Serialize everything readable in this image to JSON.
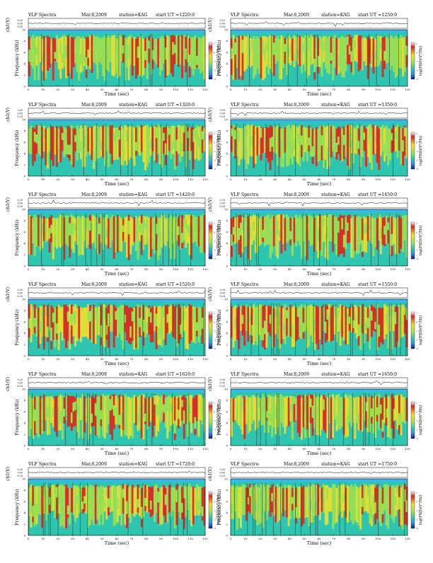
{
  "panel_defaults": {
    "header_left": "VLF Spectra",
    "date": "Mar.8,2009",
    "station": "station=KAG",
    "wave_label": "ch1(V)",
    "wave_ticks": [
      "0.20",
      "0.00",
      "-0.20"
    ],
    "freq_label": "Frequency (kHz)",
    "freq_ticks": [
      "10",
      "8",
      "6",
      "4",
      "2",
      "0"
    ],
    "time_label": "Time (sec)",
    "time_ticks": [
      "0",
      "10",
      "20",
      "30",
      "40",
      "50",
      "60",
      "70",
      "80",
      "90",
      "100",
      "110",
      "120"
    ],
    "colorbar_label": "log(PSD)(V²/Hz)",
    "colorbar_ticks": [
      "1",
      "0",
      "-1",
      "-2",
      "-3"
    ]
  },
  "colors": {
    "low": "#2f8fe0",
    "mid_low": "#2ec6b0",
    "mid": "#9fe050",
    "high": "#f0e02a",
    "peak": "#e2231a",
    "top_band": "#35b8ec",
    "sferic": "#3a3a3a"
  },
  "chart_data": [
    {
      "type": "heatmap",
      "start_label": "start  UT =1220:0",
      "density": 0.55,
      "seed": 3,
      "xlim": [
        0,
        120
      ],
      "ylim_khz": [
        0,
        10
      ]
    },
    {
      "type": "heatmap",
      "start_label": "start  UT =1250:0",
      "density": 0.5,
      "seed": 7,
      "xlim": [
        0,
        120
      ],
      "ylim_khz": [
        0,
        10
      ]
    },
    {
      "type": "heatmap",
      "start_label": "start  UT =1320:0",
      "density": 0.62,
      "seed": 11,
      "xlim": [
        0,
        120
      ],
      "ylim_khz": [
        0,
        10
      ]
    },
    {
      "type": "heatmap",
      "start_label": "start  UT =1350:0",
      "density": 0.6,
      "seed": 13,
      "xlim": [
        0,
        120
      ],
      "ylim_khz": [
        0,
        10
      ]
    },
    {
      "type": "heatmap",
      "start_label": "start  UT =1420:0",
      "density": 0.5,
      "seed": 17,
      "xlim": [
        0,
        120
      ],
      "ylim_khz": [
        0,
        10
      ]
    },
    {
      "type": "heatmap",
      "start_label": "start  UT =1450:0",
      "density": 0.52,
      "seed": 19,
      "xlim": [
        0,
        120
      ],
      "ylim_khz": [
        0,
        10
      ]
    },
    {
      "type": "heatmap",
      "start_label": "start  UT =1520:0",
      "density": 0.72,
      "seed": 23,
      "xlim": [
        0,
        120
      ],
      "ylim_khz": [
        0,
        10
      ]
    },
    {
      "type": "heatmap",
      "start_label": "start  UT =1550:0",
      "density": 0.66,
      "seed": 29,
      "xlim": [
        0,
        120
      ],
      "ylim_khz": [
        0,
        10
      ]
    },
    {
      "type": "heatmap",
      "start_label": "start  UT =1620:0",
      "density": 0.62,
      "seed": 31,
      "xlim": [
        0,
        120
      ],
      "ylim_khz": [
        0,
        10
      ]
    },
    {
      "type": "heatmap",
      "start_label": "start  UT =1650:0",
      "density": 0.64,
      "seed": 37,
      "xlim": [
        0,
        120
      ],
      "ylim_khz": [
        0,
        10
      ]
    },
    {
      "type": "heatmap",
      "start_label": "start  UT =1720:0",
      "density": 0.58,
      "seed": 41,
      "xlim": [
        0,
        120
      ],
      "ylim_khz": [
        0,
        10
      ]
    },
    {
      "type": "heatmap",
      "start_label": "start  UT =1750:0",
      "density": 0.56,
      "seed": 43,
      "xlim": [
        0,
        120
      ],
      "ylim_khz": [
        0,
        10
      ]
    }
  ]
}
